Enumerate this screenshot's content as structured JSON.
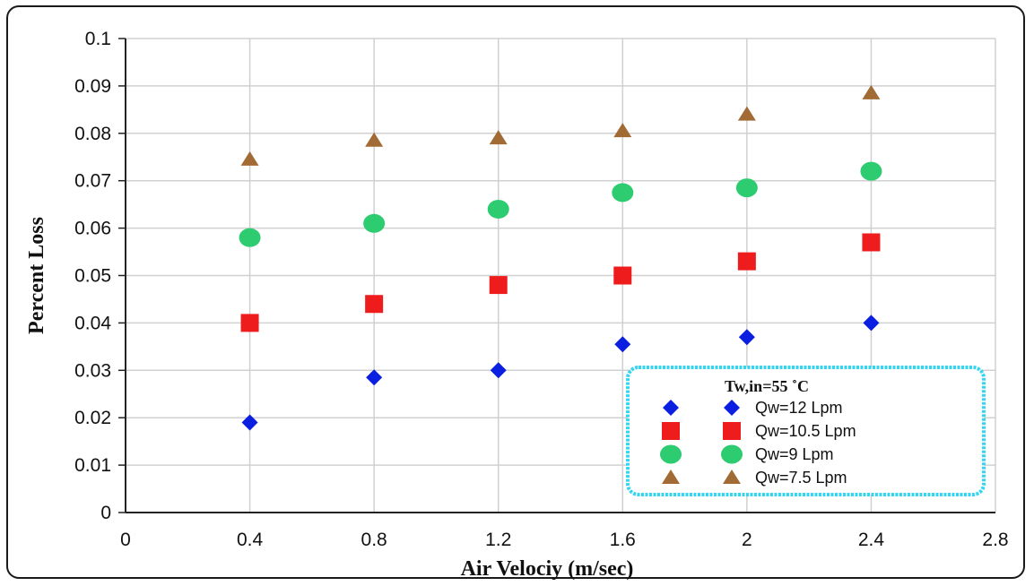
{
  "chart_data": {
    "type": "scatter",
    "title": "",
    "xlabel": "Air Velociy (m/sec)",
    "ylabel": "Percent Loss",
    "xlim": [
      0,
      2.8
    ],
    "ylim": [
      0,
      0.1
    ],
    "x_ticks": [
      "0",
      "0.4",
      "0.8",
      "1.2",
      "1.6",
      "2",
      "2.4",
      "2.8"
    ],
    "y_ticks": [
      "0",
      "0.01",
      "0.02",
      "0.03",
      "0.04",
      "0.05",
      "0.06",
      "0.07",
      "0.08",
      "0.09",
      "0.1"
    ],
    "grid": true,
    "legend": {
      "title": "Tw,in=55 ˚C",
      "position": "bottom-right",
      "border_color": "#33d6f0"
    },
    "x": [
      0.4,
      0.8,
      1.2,
      1.6,
      2.0,
      2.4
    ],
    "series": [
      {
        "name": "Qw=12 Lpm",
        "marker": "diamond",
        "color": "#0b1fe0",
        "values": [
          0.019,
          0.0285,
          0.03,
          0.0355,
          0.037,
          0.04
        ]
      },
      {
        "name": "Qw=10.5 Lpm",
        "marker": "square",
        "color": "#ee1c1c",
        "values": [
          0.04,
          0.044,
          0.048,
          0.05,
          0.053,
          0.057
        ]
      },
      {
        "name": "Qw=9 Lpm",
        "marker": "circle",
        "color": "#2ecc71",
        "values": [
          0.058,
          0.061,
          0.064,
          0.0675,
          0.0685,
          0.072
        ]
      },
      {
        "name": "Qw=7.5 Lpm",
        "marker": "triangle",
        "color": "#a26b35",
        "values": [
          0.0745,
          0.0785,
          0.079,
          0.0805,
          0.084,
          0.0885
        ]
      }
    ]
  }
}
